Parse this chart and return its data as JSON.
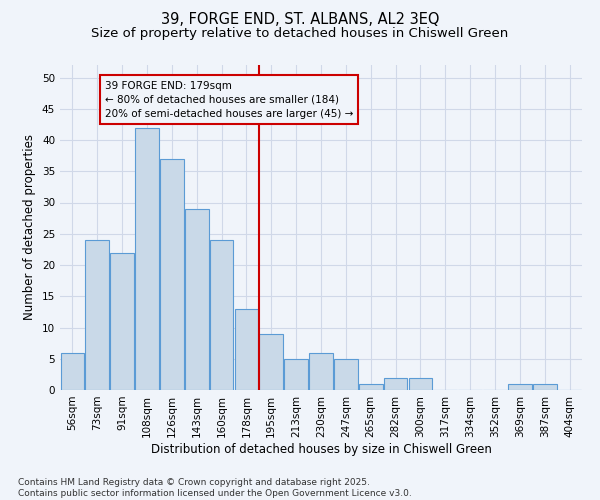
{
  "title1": "39, FORGE END, ST. ALBANS, AL2 3EQ",
  "title2": "Size of property relative to detached houses in Chiswell Green",
  "xlabel": "Distribution of detached houses by size in Chiswell Green",
  "ylabel": "Number of detached properties",
  "categories": [
    "56sqm",
    "73sqm",
    "91sqm",
    "108sqm",
    "126sqm",
    "143sqm",
    "160sqm",
    "178sqm",
    "195sqm",
    "213sqm",
    "230sqm",
    "247sqm",
    "265sqm",
    "282sqm",
    "300sqm",
    "317sqm",
    "334sqm",
    "352sqm",
    "369sqm",
    "387sqm",
    "404sqm"
  ],
  "values": [
    6,
    24,
    22,
    42,
    37,
    29,
    24,
    13,
    9,
    5,
    6,
    5,
    1,
    2,
    2,
    0,
    0,
    0,
    1,
    1,
    0
  ],
  "bar_color": "#c9d9e8",
  "bar_edge_color": "#5b9bd5",
  "highlight_index": 7,
  "vline_color": "#cc0000",
  "annotation_text": "39 FORGE END: 179sqm\n← 80% of detached houses are smaller (184)\n20% of semi-detached houses are larger (45) →",
  "annotation_box_color": "#cc0000",
  "ylim": [
    0,
    52
  ],
  "yticks": [
    0,
    5,
    10,
    15,
    20,
    25,
    30,
    35,
    40,
    45,
    50
  ],
  "grid_color": "#d0d8e8",
  "bg_color": "#f0f4fa",
  "footer_text": "Contains HM Land Registry data © Crown copyright and database right 2025.\nContains public sector information licensed under the Open Government Licence v3.0.",
  "title_fontsize": 10.5,
  "subtitle_fontsize": 9.5,
  "axis_label_fontsize": 8.5,
  "tick_fontsize": 7.5,
  "annotation_fontsize": 7.5,
  "footer_fontsize": 6.5
}
